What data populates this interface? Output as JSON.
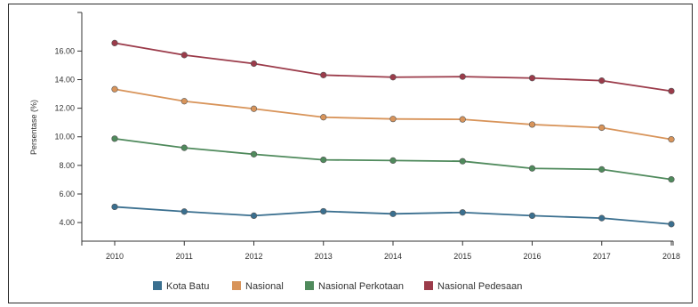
{
  "chart_data": {
    "type": "line",
    "title": "",
    "xlabel": "",
    "ylabel": "Persentase (%)",
    "x": [
      "2010",
      "2011",
      "2012",
      "2013",
      "2014",
      "2015",
      "2016",
      "2017",
      "2018"
    ],
    "y_ticks": [
      "4.00",
      "6.00",
      "8.00",
      "10.00",
      "12.00",
      "14.00",
      "16.00"
    ],
    "ylim": [
      2.7,
      18.7
    ],
    "grid": false,
    "legend_position": "bottom",
    "series": [
      {
        "name": "Kota Batu",
        "color": "#3a6f8f",
        "values": [
          5.1,
          4.77,
          4.48,
          4.79,
          4.61,
          4.71,
          4.48,
          4.31,
          3.89
        ]
      },
      {
        "name": "Nasional",
        "color": "#d8945a",
        "values": [
          13.33,
          12.49,
          11.96,
          11.37,
          11.25,
          11.22,
          10.86,
          10.64,
          9.82
        ]
      },
      {
        "name": "Nasional Perkotaan",
        "color": "#4f8a5c",
        "values": [
          9.87,
          9.23,
          8.78,
          8.39,
          8.34,
          8.29,
          7.79,
          7.72,
          7.02
        ]
      },
      {
        "name": "Nasional Pedesaan",
        "color": "#9b3b4a",
        "values": [
          16.56,
          15.72,
          15.12,
          14.32,
          14.17,
          14.21,
          14.11,
          13.93,
          13.2
        ]
      }
    ]
  }
}
